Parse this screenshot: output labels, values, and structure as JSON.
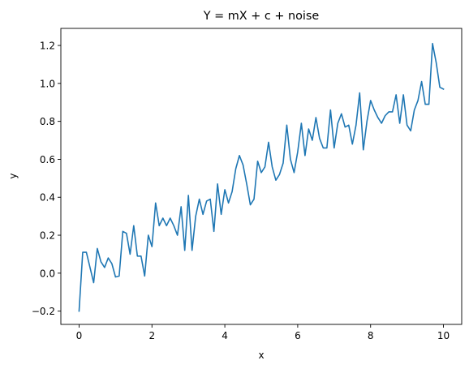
{
  "chart_data": {
    "type": "line",
    "title": "Y = mX + c + noise",
    "xlabel": "x",
    "ylabel": "y",
    "xlim": [
      -0.5,
      10.5
    ],
    "ylim": [
      -0.27,
      1.29
    ],
    "xticks": [
      0,
      2,
      4,
      6,
      8,
      10
    ],
    "xtick_labels": [
      "0",
      "2",
      "4",
      "6",
      "8",
      "10"
    ],
    "yticks": [
      -0.2,
      0.0,
      0.2,
      0.4,
      0.6,
      0.8,
      1.0,
      1.2
    ],
    "ytick_labels": [
      "−0.2",
      "0.0",
      "0.2",
      "0.4",
      "0.6",
      "0.8",
      "1.0",
      "1.2"
    ],
    "grid": false,
    "color": "#1f77b4",
    "series": [
      {
        "x": [
          0,
          0.1,
          0.2,
          0.3,
          0.4,
          0.5,
          0.6,
          0.7,
          0.8,
          0.9,
          1.0,
          1.1,
          1.2,
          1.3,
          1.4,
          1.5,
          1.6,
          1.7,
          1.8,
          1.9,
          2.0,
          2.1,
          2.2,
          2.3,
          2.4,
          2.5,
          2.6,
          2.7,
          2.8,
          2.9,
          3.0,
          3.1,
          3.2,
          3.3,
          3.4,
          3.5,
          3.6,
          3.7,
          3.8,
          3.9,
          4.0,
          4.1,
          4.2,
          4.3,
          4.4,
          4.5,
          4.6,
          4.7,
          4.8,
          4.9,
          5.0,
          5.1,
          5.2,
          5.3,
          5.4,
          5.5,
          5.6,
          5.7,
          5.8,
          5.9,
          6.0,
          6.1,
          6.2,
          6.3,
          6.4,
          6.5,
          6.6,
          6.7,
          6.8,
          6.9,
          7.0,
          7.1,
          7.2,
          7.3,
          7.4,
          7.5,
          7.6,
          7.7,
          7.8,
          7.9,
          8.0,
          8.1,
          8.2,
          8.3,
          8.4,
          8.5,
          8.6,
          8.7,
          8.8,
          8.9,
          9.0,
          9.1,
          9.2,
          9.3,
          9.4,
          9.5,
          9.6,
          9.7,
          9.8,
          9.9,
          10.0
        ],
        "y": [
          -0.2,
          0.11,
          0.11,
          0.03,
          -0.05,
          0.13,
          0.06,
          0.03,
          0.08,
          0.05,
          -0.02,
          -0.015,
          0.22,
          0.21,
          0.1,
          0.25,
          0.09,
          0.09,
          -0.015,
          0.2,
          0.14,
          0.37,
          0.25,
          0.29,
          0.25,
          0.29,
          0.25,
          0.2,
          0.35,
          0.12,
          0.41,
          0.12,
          0.3,
          0.39,
          0.31,
          0.38,
          0.39,
          0.22,
          0.47,
          0.31,
          0.44,
          0.37,
          0.43,
          0.55,
          0.62,
          0.57,
          0.47,
          0.36,
          0.39,
          0.59,
          0.53,
          0.56,
          0.69,
          0.56,
          0.49,
          0.52,
          0.58,
          0.78,
          0.6,
          0.53,
          0.64,
          0.79,
          0.62,
          0.76,
          0.7,
          0.82,
          0.71,
          0.66,
          0.66,
          0.86,
          0.66,
          0.79,
          0.84,
          0.77,
          0.78,
          0.68,
          0.78,
          0.95,
          0.65,
          0.8,
          0.91,
          0.86,
          0.82,
          0.79,
          0.83,
          0.85,
          0.85,
          0.94,
          0.79,
          0.94,
          0.78,
          0.75,
          0.86,
          0.91,
          1.01,
          0.89,
          0.89,
          1.21,
          1.11,
          0.98,
          0.97
        ]
      }
    ]
  }
}
